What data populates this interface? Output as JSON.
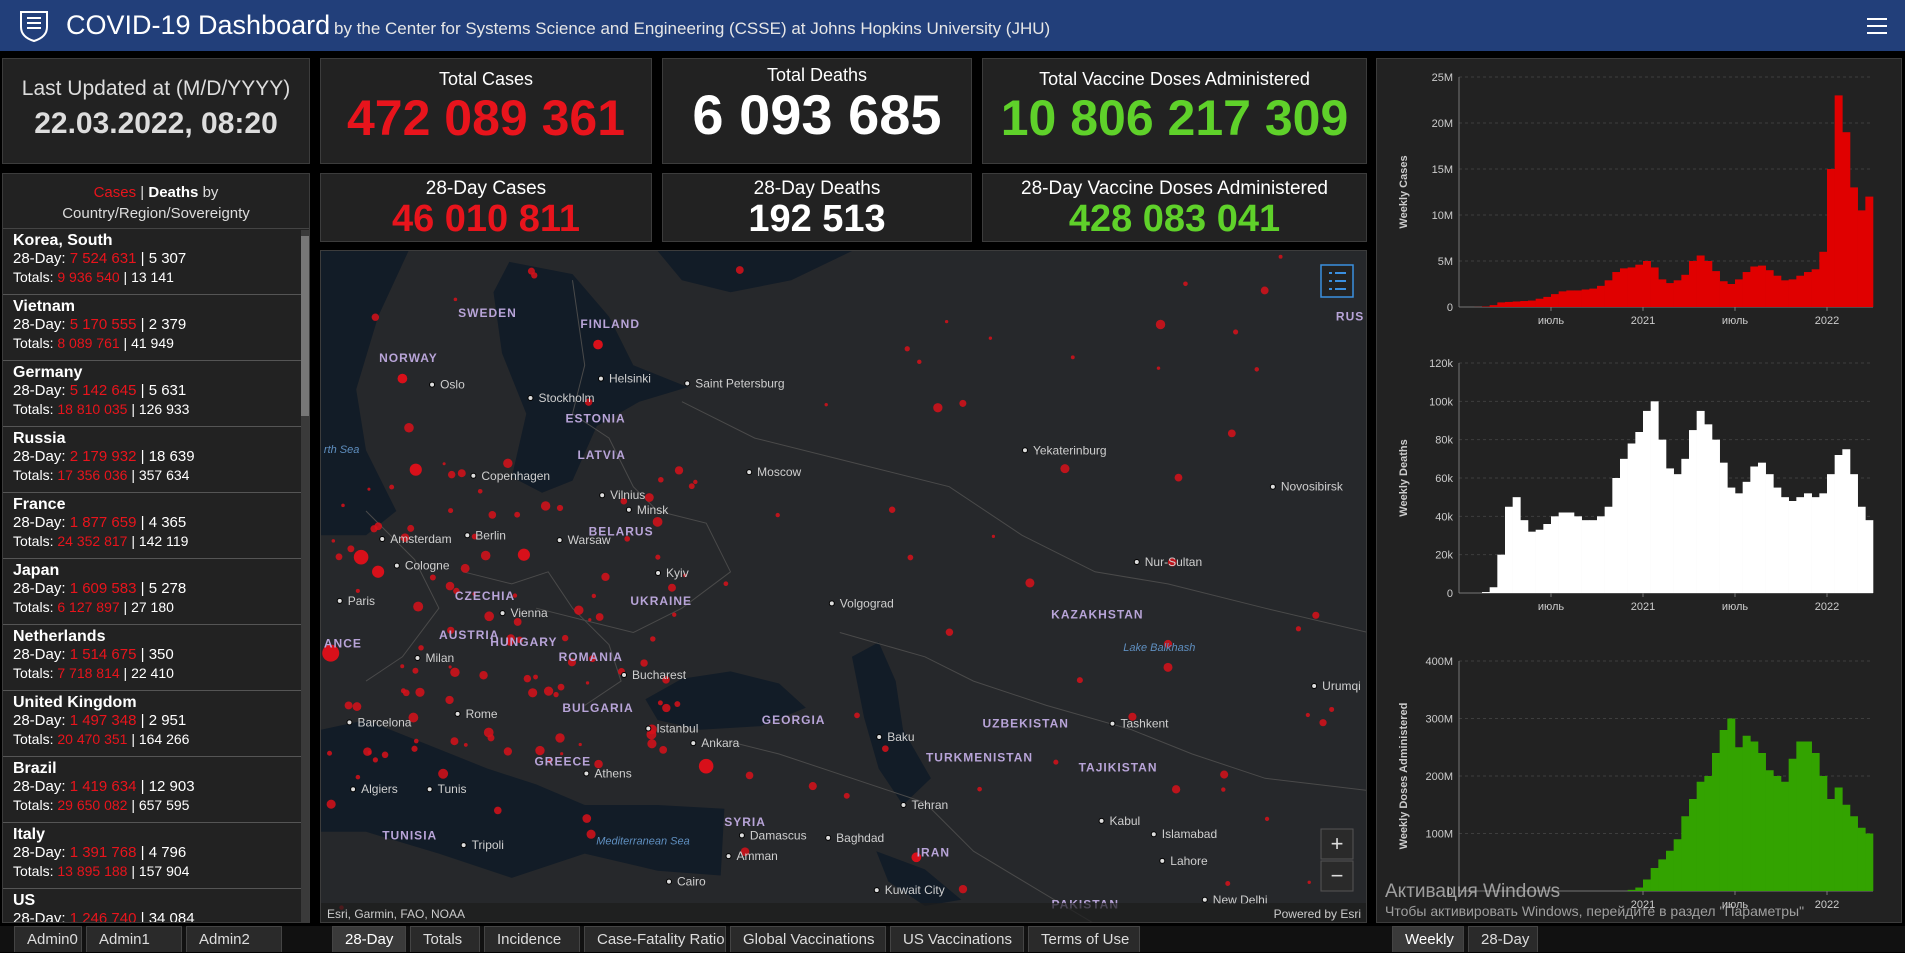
{
  "header": {
    "title": "COVID-19 Dashboard",
    "subtitle": "by the Center for Systems Science and Engineering (CSSE) at Johns Hopkins University (JHU)"
  },
  "last_updated": {
    "label": "Last Updated at (M/D/YYYY)",
    "value": "22.03.2022, 08:20"
  },
  "stats": [
    {
      "label": "Total Cases",
      "value": "472 089 361"
    },
    {
      "label": "Total Deaths",
      "value": "6 093 685"
    },
    {
      "label": "Total Vaccine Doses Administered",
      "value": "10 806 217 309"
    },
    {
      "label": "28-Day Cases",
      "value": "46 010 811"
    },
    {
      "label": "28-Day Deaths",
      "value": "192 513"
    },
    {
      "label": "28-Day Vaccine Doses Administered",
      "value": "428 083 041"
    }
  ],
  "list": {
    "header": {
      "cases": "Cases",
      "sep": "|",
      "deaths": "Deaths",
      "by": "by",
      "sub": "Country/Region/Sovereignty"
    },
    "row_labels": {
      "day28": "28-Day:",
      "totals": "Totals:",
      "sep": "|"
    },
    "items": [
      {
        "name": "Korea, South",
        "d28_cases": "7 524 631",
        "d28_deaths": "5 307",
        "total_cases": "9 936 540",
        "total_deaths": "13 141"
      },
      {
        "name": "Vietnam",
        "d28_cases": "5 170 555",
        "d28_deaths": "2 379",
        "total_cases": "8 089 761",
        "total_deaths": "41 949"
      },
      {
        "name": "Germany",
        "d28_cases": "5 142 645",
        "d28_deaths": "5 631",
        "total_cases": "18 810 035",
        "total_deaths": "126 933"
      },
      {
        "name": "Russia",
        "d28_cases": "2 179 932",
        "d28_deaths": "18 639",
        "total_cases": "17 356 036",
        "total_deaths": "357 634"
      },
      {
        "name": "France",
        "d28_cases": "1 877 659",
        "d28_deaths": "4 365",
        "total_cases": "24 352 817",
        "total_deaths": "142 119"
      },
      {
        "name": "Japan",
        "d28_cases": "1 609 583",
        "d28_deaths": "5 278",
        "total_cases": "6 127 897",
        "total_deaths": "27 180"
      },
      {
        "name": "Netherlands",
        "d28_cases": "1 514 675",
        "d28_deaths": "350",
        "total_cases": "7 718 814",
        "total_deaths": "22 410"
      },
      {
        "name": "United Kingdom",
        "d28_cases": "1 497 348",
        "d28_deaths": "2 951",
        "total_cases": "20 470 351",
        "total_deaths": "164 266"
      },
      {
        "name": "Brazil",
        "d28_cases": "1 419 634",
        "d28_deaths": "12 903",
        "total_cases": "29 650 082",
        "total_deaths": "657 595"
      },
      {
        "name": "Italy",
        "d28_cases": "1 391 768",
        "d28_deaths": "4 796",
        "total_cases": "13 895 188",
        "total_deaths": "157 904"
      },
      {
        "name": "US",
        "d28_cases": "1 246 740",
        "d28_deaths": "34 084"
      }
    ]
  },
  "map": {
    "labels": [
      {
        "text": "SWEDEN",
        "kind": "country"
      },
      {
        "text": "FINLAND",
        "kind": "country"
      },
      {
        "text": "NORWAY",
        "kind": "country"
      },
      {
        "text": "ESTONIA",
        "kind": "country"
      },
      {
        "text": "LATVIA",
        "kind": "country"
      },
      {
        "text": "BELARUS",
        "kind": "country"
      },
      {
        "text": "UKRAINE",
        "kind": "country"
      },
      {
        "text": "CZECHIA",
        "kind": "country"
      },
      {
        "text": "AUSTRIA",
        "kind": "country"
      },
      {
        "text": "HUNGARY",
        "kind": "country"
      },
      {
        "text": "ROMANIA",
        "kind": "country"
      },
      {
        "text": "BULGARIA",
        "kind": "country"
      },
      {
        "text": "GREECE",
        "kind": "country"
      },
      {
        "text": "GEORGIA",
        "kind": "country"
      },
      {
        "text": "KAZAKHSTAN",
        "kind": "country"
      },
      {
        "text": "UZBEKISTAN",
        "kind": "country"
      },
      {
        "text": "TURKMENISTAN",
        "kind": "country"
      },
      {
        "text": "TAJIKISTAN",
        "kind": "country"
      },
      {
        "text": "SYRIA",
        "kind": "country"
      },
      {
        "text": "TUNISIA",
        "kind": "country"
      },
      {
        "text": "IRAN",
        "kind": "country"
      },
      {
        "text": "PAKISTAN",
        "kind": "country"
      },
      {
        "text": "RUS",
        "kind": "country"
      },
      {
        "text": "ANCE",
        "kind": "country"
      },
      {
        "text": "Oslo",
        "kind": "city"
      },
      {
        "text": "Stockholm",
        "kind": "city"
      },
      {
        "text": "Helsinki",
        "kind": "city"
      },
      {
        "text": "Saint Petersburg",
        "kind": "city"
      },
      {
        "text": "Copenhagen",
        "kind": "city"
      },
      {
        "text": "Amsterdam",
        "kind": "city"
      },
      {
        "text": "Berlin",
        "kind": "city"
      },
      {
        "text": "Warsaw",
        "kind": "city"
      },
      {
        "text": "Vilnius",
        "kind": "city"
      },
      {
        "text": "Minsk",
        "kind": "city"
      },
      {
        "text": "Moscow",
        "kind": "city"
      },
      {
        "text": "Yekaterinburg",
        "kind": "city"
      },
      {
        "text": "Novosibirsk",
        "kind": "city"
      },
      {
        "text": "Nur-Sultan",
        "kind": "city"
      },
      {
        "text": "Cologne",
        "kind": "city"
      },
      {
        "text": "Paris",
        "kind": "city"
      },
      {
        "text": "Vienna",
        "kind": "city"
      },
      {
        "text": "Kyiv",
        "kind": "city"
      },
      {
        "text": "Volgograd",
        "kind": "city"
      },
      {
        "text": "Milan",
        "kind": "city"
      },
      {
        "text": "Bucharest",
        "kind": "city"
      },
      {
        "text": "Rome",
        "kind": "city"
      },
      {
        "text": "Barcelona",
        "kind": "city"
      },
      {
        "text": "Istanbul",
        "kind": "city"
      },
      {
        "text": "Ankara",
        "kind": "city"
      },
      {
        "text": "Baku",
        "kind": "city"
      },
      {
        "text": "Tashkent",
        "kind": "city"
      },
      {
        "text": "Urumqi",
        "kind": "city"
      },
      {
        "text": "Algiers",
        "kind": "city"
      },
      {
        "text": "Tunis",
        "kind": "city"
      },
      {
        "text": "Athens",
        "kind": "city"
      },
      {
        "text": "Tripoli",
        "kind": "city"
      },
      {
        "text": "Tehran",
        "kind": "city"
      },
      {
        "text": "Damascus",
        "kind": "city"
      },
      {
        "text": "Amman",
        "kind": "city"
      },
      {
        "text": "Baghdad",
        "kind": "city"
      },
      {
        "text": "Kabul",
        "kind": "city"
      },
      {
        "text": "Islamabad",
        "kind": "city"
      },
      {
        "text": "Lahore",
        "kind": "city"
      },
      {
        "text": "Cairo",
        "kind": "city"
      },
      {
        "text": "Kuwait City",
        "kind": "city"
      },
      {
        "text": "New Delhi",
        "kind": "city"
      },
      {
        "text": "Lake Balkhash",
        "kind": "water"
      },
      {
        "text": "Mediterranean Sea",
        "kind": "water"
      },
      {
        "text": "rth Sea",
        "kind": "water"
      }
    ],
    "attribution": "Esri, Garmin, FAO, NOAA",
    "powered": "Powered by Esri",
    "zoom_in": "+",
    "zoom_out": "−"
  },
  "charts": [
    {
      "type": "bar",
      "ylabel": "Weekly Cases",
      "color": "#e00000",
      "xlim": [
        0,
        54
      ],
      "xticks": [
        {
          "value": 12,
          "label": "июль"
        },
        {
          "value": 24,
          "label": "2021"
        },
        {
          "value": 36,
          "label": "июль"
        },
        {
          "value": 48,
          "label": "2022"
        }
      ],
      "ylim": [
        0,
        25000000
      ],
      "yticks": [
        0,
        {
          "value": 5000000,
          "label": "5M"
        },
        {
          "value": 10000000,
          "label": "10M"
        },
        {
          "value": 15000000,
          "label": "15M"
        },
        {
          "value": 20000000,
          "label": "20M"
        },
        {
          "value": 25000000,
          "label": "25M"
        }
      ],
      "grid": true,
      "values": [
        0,
        0,
        10000,
        50000,
        200000,
        500000,
        550000,
        600000,
        650000,
        700000,
        900000,
        1100000,
        1400000,
        1700000,
        1800000,
        1800000,
        1900000,
        2000000,
        2300000,
        2900000,
        3800000,
        4200000,
        4300000,
        4600000,
        5000000,
        4300000,
        3000000,
        2600000,
        2900000,
        3500000,
        5000000,
        5600000,
        5000000,
        3900000,
        2800000,
        2500000,
        3000000,
        3800000,
        4400000,
        4500000,
        4000000,
        3400000,
        2900000,
        3000000,
        3400000,
        3800000,
        4100000,
        6000000,
        15000000,
        23000000,
        19000000,
        13000000,
        10500000,
        12000000
      ]
    },
    {
      "type": "bar",
      "ylabel": "Weekly Deaths",
      "color": "#ffffff",
      "xlim": [
        0,
        54
      ],
      "xticks": [
        {
          "value": 12,
          "label": "июль"
        },
        {
          "value": 24,
          "label": "2021"
        },
        {
          "value": 36,
          "label": "июль"
        },
        {
          "value": 48,
          "label": "2022"
        }
      ],
      "ylim": [
        0,
        120000
      ],
      "yticks": [
        0,
        {
          "value": 20000,
          "label": "20k"
        },
        {
          "value": 40000,
          "label": "40k"
        },
        {
          "value": 60000,
          "label": "60k"
        },
        {
          "value": 80000,
          "label": "80k"
        },
        {
          "value": 100000,
          "label": "100k"
        },
        {
          "value": 120000,
          "label": "120k"
        }
      ],
      "grid": true,
      "values": [
        0,
        0,
        0,
        500,
        3000,
        20000,
        45000,
        50000,
        38000,
        32000,
        33000,
        36000,
        40000,
        42000,
        42000,
        40000,
        38000,
        38000,
        40000,
        45000,
        60000,
        70000,
        78000,
        84000,
        95000,
        100000,
        80000,
        65000,
        62000,
        70000,
        85000,
        95000,
        88000,
        80000,
        68000,
        55000,
        52000,
        58000,
        66000,
        68000,
        62000,
        55000,
        50000,
        48000,
        50000,
        52000,
        50000,
        52000,
        62000,
        72000,
        75000,
        62000,
        45000,
        38000
      ]
    },
    {
      "type": "bar",
      "ylabel": "Weekly Doses Administered",
      "color": "#33a300",
      "xlim": [
        0,
        54
      ],
      "xticks": [
        {
          "value": 24,
          "label": "2021"
        },
        {
          "value": 36,
          "label": "июль"
        },
        {
          "value": 48,
          "label": "2022"
        }
      ],
      "ylim": [
        0,
        400000000
      ],
      "yticks": [
        0,
        {
          "value": 100000000,
          "label": "100M"
        },
        {
          "value": 200000000,
          "label": "200M"
        },
        {
          "value": 300000000,
          "label": "300M"
        },
        {
          "value": 400000000,
          "label": "400M"
        }
      ],
      "grid": true,
      "values": [
        0,
        0,
        0,
        0,
        0,
        0,
        0,
        0,
        0,
        0,
        0,
        0,
        0,
        0,
        0,
        0,
        0,
        0,
        0,
        0,
        0,
        0,
        2000000,
        6000000,
        20000000,
        40000000,
        55000000,
        70000000,
        90000000,
        130000000,
        160000000,
        190000000,
        200000000,
        240000000,
        280000000,
        300000000,
        250000000,
        270000000,
        260000000,
        240000000,
        210000000,
        200000000,
        190000000,
        230000000,
        260000000,
        260000000,
        240000000,
        200000000,
        160000000,
        180000000,
        150000000,
        130000000,
        110000000,
        100000000
      ]
    }
  ],
  "watermark": {
    "title": "Активация Windows",
    "text": "Чтобы активировать Windows, перейдите в раздел \"Параметры\""
  },
  "tabs": {
    "left": [
      "Admin0",
      "Admin1",
      "Admin2"
    ],
    "middle": [
      "28-Day",
      "Totals",
      "Incidence",
      "Case-Fatality Ratio",
      "Global Vaccinations",
      "US Vaccinations",
      "Terms of Use"
    ],
    "right": [
      "Weekly",
      "28-Day"
    ]
  }
}
